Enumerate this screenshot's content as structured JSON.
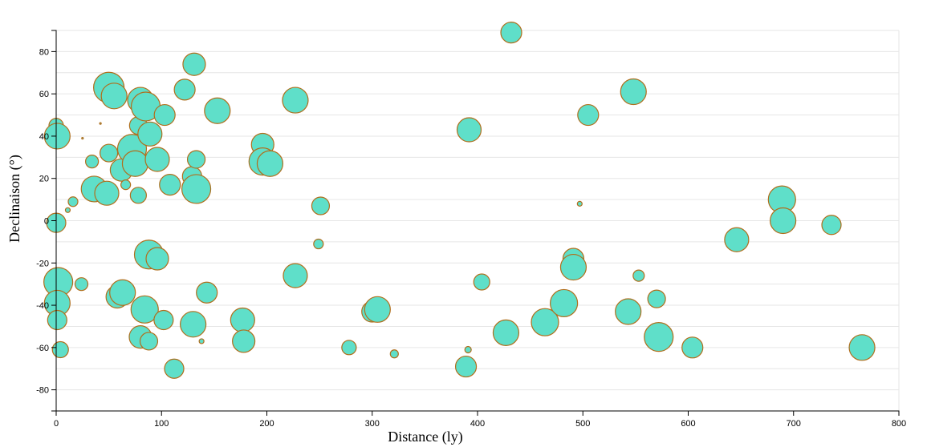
{
  "chart_data": {
    "type": "scatter",
    "title": "",
    "xlabel": "Distance (ly)",
    "ylabel": "Declinaison (°)",
    "xlim": [
      0,
      800
    ],
    "ylim": [
      -90,
      90
    ],
    "x_ticks": [
      0,
      100,
      200,
      300,
      400,
      500,
      600,
      700,
      800
    ],
    "y_ticks": [
      -80,
      -60,
      -40,
      -20,
      0,
      20,
      40,
      60,
      80
    ],
    "grid": true,
    "colors": {
      "fill": "#5fdfc9",
      "stroke": "#b06e1c"
    },
    "points": [
      {
        "x": 0,
        "y": 45,
        "r": 9
      },
      {
        "x": 1,
        "y": 40,
        "r": 16
      },
      {
        "x": 0,
        "y": -1,
        "r": 12
      },
      {
        "x": 0,
        "y": -27,
        "r": 12
      },
      {
        "x": 2,
        "y": -29,
        "r": 18
      },
      {
        "x": 1,
        "y": -39,
        "r": 16
      },
      {
        "x": 1,
        "y": -47,
        "r": 12
      },
      {
        "x": 4,
        "y": -61,
        "r": 10
      },
      {
        "x": 11,
        "y": 5,
        "r": 3
      },
      {
        "x": 16,
        "y": 9,
        "r": 6
      },
      {
        "x": 24,
        "y": -30,
        "r": 8
      },
      {
        "x": 25,
        "y": 39,
        "r": 1
      },
      {
        "x": 34,
        "y": 28,
        "r": 8
      },
      {
        "x": 36,
        "y": 15,
        "r": 16
      },
      {
        "x": 42,
        "y": 46,
        "r": 1
      },
      {
        "x": 48,
        "y": 13,
        "r": 15
      },
      {
        "x": 50,
        "y": 32,
        "r": 11
      },
      {
        "x": 50,
        "y": 63,
        "r": 19
      },
      {
        "x": 55,
        "y": 59,
        "r": 16
      },
      {
        "x": 58,
        "y": -36,
        "r": 14
      },
      {
        "x": 62,
        "y": 24,
        "r": 14
      },
      {
        "x": 63,
        "y": -34,
        "r": 16
      },
      {
        "x": 66,
        "y": 17,
        "r": 6
      },
      {
        "x": 72,
        "y": 34,
        "r": 18
      },
      {
        "x": 75,
        "y": 27,
        "r": 16
      },
      {
        "x": 78,
        "y": 45,
        "r": 11
      },
      {
        "x": 78,
        "y": 12,
        "r": 10
      },
      {
        "x": 80,
        "y": 57,
        "r": 16
      },
      {
        "x": 80,
        "y": -55,
        "r": 14
      },
      {
        "x": 84,
        "y": -42,
        "r": 17
      },
      {
        "x": 85,
        "y": 54,
        "r": 18
      },
      {
        "x": 88,
        "y": -57,
        "r": 11
      },
      {
        "x": 88,
        "y": -16,
        "r": 18
      },
      {
        "x": 89,
        "y": 41,
        "r": 15
      },
      {
        "x": 96,
        "y": 29,
        "r": 15
      },
      {
        "x": 96,
        "y": -18,
        "r": 14
      },
      {
        "x": 102,
        "y": -47,
        "r": 12
      },
      {
        "x": 103,
        "y": 50,
        "r": 13
      },
      {
        "x": 108,
        "y": 17,
        "r": 13
      },
      {
        "x": 112,
        "y": -70,
        "r": 12
      },
      {
        "x": 122,
        "y": 62,
        "r": 13
      },
      {
        "x": 129,
        "y": 21,
        "r": 12
      },
      {
        "x": 130,
        "y": -49,
        "r": 16
      },
      {
        "x": 131,
        "y": 74,
        "r": 14
      },
      {
        "x": 133,
        "y": 15,
        "r": 18
      },
      {
        "x": 133,
        "y": 29,
        "r": 11
      },
      {
        "x": 138,
        "y": -57,
        "r": 3
      },
      {
        "x": 143,
        "y": -34,
        "r": 13
      },
      {
        "x": 153,
        "y": 52,
        "r": 16
      },
      {
        "x": 177,
        "y": -47,
        "r": 15
      },
      {
        "x": 178,
        "y": -57,
        "r": 14
      },
      {
        "x": 196,
        "y": 36,
        "r": 14
      },
      {
        "x": 196,
        "y": 28,
        "r": 17
      },
      {
        "x": 203,
        "y": 27,
        "r": 16
      },
      {
        "x": 227,
        "y": 57,
        "r": 16
      },
      {
        "x": 227,
        "y": -26,
        "r": 15
      },
      {
        "x": 249,
        "y": -11,
        "r": 6
      },
      {
        "x": 251,
        "y": 7,
        "r": 11
      },
      {
        "x": 278,
        "y": -60,
        "r": 9
      },
      {
        "x": 300,
        "y": -43,
        "r": 13
      },
      {
        "x": 305,
        "y": -42,
        "r": 16
      },
      {
        "x": 321,
        "y": -63,
        "r": 5
      },
      {
        "x": 389,
        "y": -69,
        "r": 13
      },
      {
        "x": 391,
        "y": -61,
        "r": 4
      },
      {
        "x": 392,
        "y": 43,
        "r": 15
      },
      {
        "x": 404,
        "y": -29,
        "r": 10
      },
      {
        "x": 427,
        "y": -53,
        "r": 16
      },
      {
        "x": 432,
        "y": 89,
        "r": 13
      },
      {
        "x": 464,
        "y": -48,
        "r": 17
      },
      {
        "x": 482,
        "y": -39,
        "r": 17
      },
      {
        "x": 491,
        "y": -18,
        "r": 13
      },
      {
        "x": 491,
        "y": -22,
        "r": 16
      },
      {
        "x": 497,
        "y": 8,
        "r": 3
      },
      {
        "x": 505,
        "y": 50,
        "r": 13
      },
      {
        "x": 543,
        "y": -43,
        "r": 16
      },
      {
        "x": 548,
        "y": 61,
        "r": 16
      },
      {
        "x": 553,
        "y": -26,
        "r": 7
      },
      {
        "x": 570,
        "y": -37,
        "r": 11
      },
      {
        "x": 572,
        "y": -55,
        "r": 18
      },
      {
        "x": 604,
        "y": -60,
        "r": 13
      },
      {
        "x": 646,
        "y": -9,
        "r": 15
      },
      {
        "x": 689,
        "y": 10,
        "r": 17
      },
      {
        "x": 690,
        "y": 0,
        "r": 16
      },
      {
        "x": 736,
        "y": -2,
        "r": 12
      },
      {
        "x": 765,
        "y": -60,
        "r": 16
      }
    ]
  }
}
